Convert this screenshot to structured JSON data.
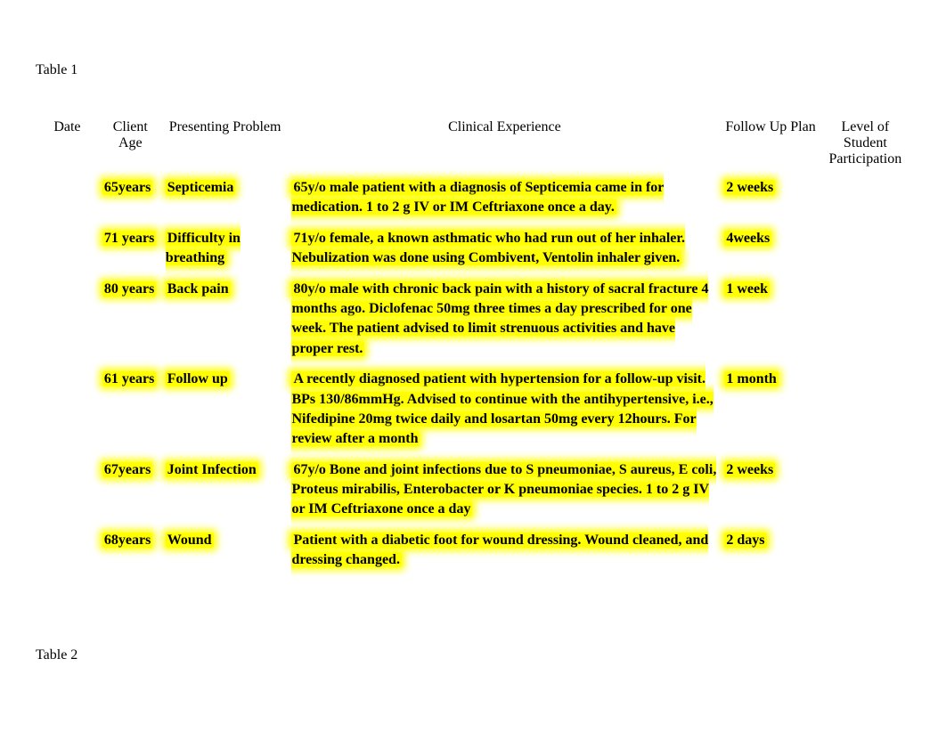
{
  "table1_label": "Table 1",
  "table2_label": "Table 2",
  "headers": {
    "date": "Date",
    "age": "Client Age",
    "problem": "Presenting Problem",
    "experience": "Clinical Experience",
    "followup": "Follow Up Plan",
    "participation": "Level of Student Participation"
  },
  "rows": [
    {
      "age": "65years",
      "problem": "Septicemia",
      "experience": "65y/o male patient with a diagnosis of Septicemia came in for medication.  1 to 2 g IV or IM Ceftriaxone once a day.",
      "followup": "2 weeks"
    },
    {
      "age": "71 years",
      "problem": "Difficulty in breathing",
      "experience": "71y/o female, a known asthmatic who had run out of her inhaler. Nebulization was done using Combivent, Ventolin inhaler given.",
      "followup": "4weeks"
    },
    {
      "age": "80 years",
      "problem": "Back pain",
      "experience": "80y/o male with chronic back pain with a history of sacral fracture 4 months ago. Diclofenac 50mg three times a day prescribed for one week. The patient advised to limit strenuous activities and have proper rest.",
      "followup": "1 week"
    },
    {
      "age": "61 years",
      "problem": "Follow up",
      "experience": "A recently diagnosed patient with hypertension for a follow-up visit. BPs 130/86mmHg. Advised to continue with the antihypertensive, i.e., Nifedipine 20mg twice daily and losartan 50mg every 12hours. For review after  a month",
      "followup": " 1 month"
    },
    {
      "age": "67years",
      "problem": "Joint Infection",
      "experience": "67y/o   Bone and joint infections due to S pneumoniae,  S aureus, E coli, Proteus mirabilis, Enterobacter or  K pneumoniae  species.  1 to 2 g IV or IM   Ceftriaxone once a day",
      "followup": "2 weeks"
    },
    {
      "age": "68years",
      "problem": "Wound",
      "experience": "Patient with a diabetic foot for wound dressing. Wound cleaned, and dressing changed.",
      "followup": "2 days"
    }
  ],
  "styling": {
    "highlight_color": "#ffff00",
    "highlight_glow": "rgba(255,255,0,0.9)",
    "background_color": "#ffffff",
    "text_color": "#000000",
    "font_family": "Times New Roman",
    "body_font_size": 16,
    "cell_font_weight": "bold",
    "header_font_weight": "normal",
    "column_widths": {
      "date": 70,
      "age": 70,
      "problem": 140,
      "experience": 480,
      "followup": 110,
      "participation": 100
    }
  }
}
